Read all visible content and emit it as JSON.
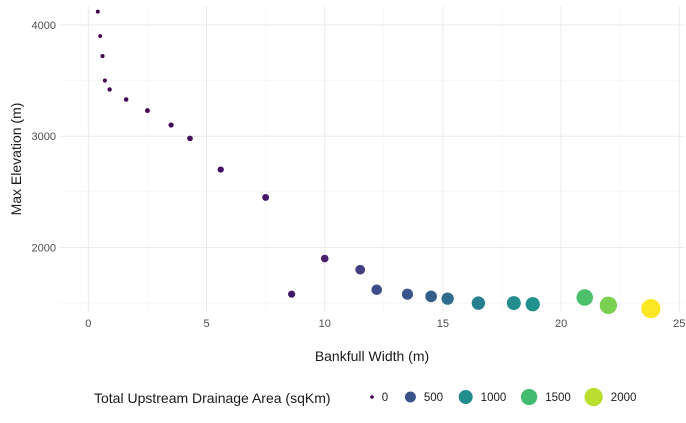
{
  "chart_data": {
    "type": "scatter",
    "title": "",
    "xlabel": "Bankfull Width (m)",
    "ylabel": "Max Elevation (m)",
    "xlim": [
      -1.2,
      25.2
    ],
    "ylim": [
      1420,
      4170
    ],
    "x_ticks": [
      0,
      5,
      10,
      15,
      20,
      25
    ],
    "y_ticks": [
      2000,
      3000,
      4000
    ],
    "grid": true,
    "legend": {
      "title": "Total Upstream Drainage Area (sqKm)",
      "position": "bottom",
      "entries": [
        0,
        500,
        1000,
        1500,
        2000
      ]
    },
    "size_color_scale": {
      "variable": "Total Upstream Drainage Area (sqKm)",
      "palette": "viridis",
      "domain": [
        0,
        2250
      ],
      "colors": [
        "#440154",
        "#472c7a",
        "#3b518b",
        "#2c718e",
        "#21908d",
        "#27ad81",
        "#5cc863",
        "#aadc32",
        "#fde725"
      ]
    },
    "points": [
      {
        "x": 0.4,
        "y": 4120,
        "area": 1
      },
      {
        "x": 0.5,
        "y": 3900,
        "area": 1
      },
      {
        "x": 0.6,
        "y": 3720,
        "area": 2
      },
      {
        "x": 0.7,
        "y": 3500,
        "area": 3
      },
      {
        "x": 0.9,
        "y": 3420,
        "area": 5
      },
      {
        "x": 1.6,
        "y": 3330,
        "area": 8
      },
      {
        "x": 2.5,
        "y": 3230,
        "area": 15
      },
      {
        "x": 3.5,
        "y": 3100,
        "area": 25
      },
      {
        "x": 4.3,
        "y": 2980,
        "area": 40
      },
      {
        "x": 5.6,
        "y": 2700,
        "area": 65
      },
      {
        "x": 7.5,
        "y": 2450,
        "area": 100
      },
      {
        "x": 8.6,
        "y": 1580,
        "area": 120
      },
      {
        "x": 10.0,
        "y": 1900,
        "area": 150
      },
      {
        "x": 11.5,
        "y": 1800,
        "area": 350
      },
      {
        "x": 12.2,
        "y": 1620,
        "area": 450
      },
      {
        "x": 13.5,
        "y": 1580,
        "area": 520
      },
      {
        "x": 14.5,
        "y": 1560,
        "area": 600
      },
      {
        "x": 15.2,
        "y": 1540,
        "area": 700
      },
      {
        "x": 16.5,
        "y": 1500,
        "area": 880
      },
      {
        "x": 18.0,
        "y": 1500,
        "area": 1000
      },
      {
        "x": 18.8,
        "y": 1490,
        "area": 1050
      },
      {
        "x": 21.0,
        "y": 1550,
        "area": 1550
      },
      {
        "x": 22.0,
        "y": 1480,
        "area": 1750
      },
      {
        "x": 23.8,
        "y": 1450,
        "area": 2250
      }
    ]
  }
}
